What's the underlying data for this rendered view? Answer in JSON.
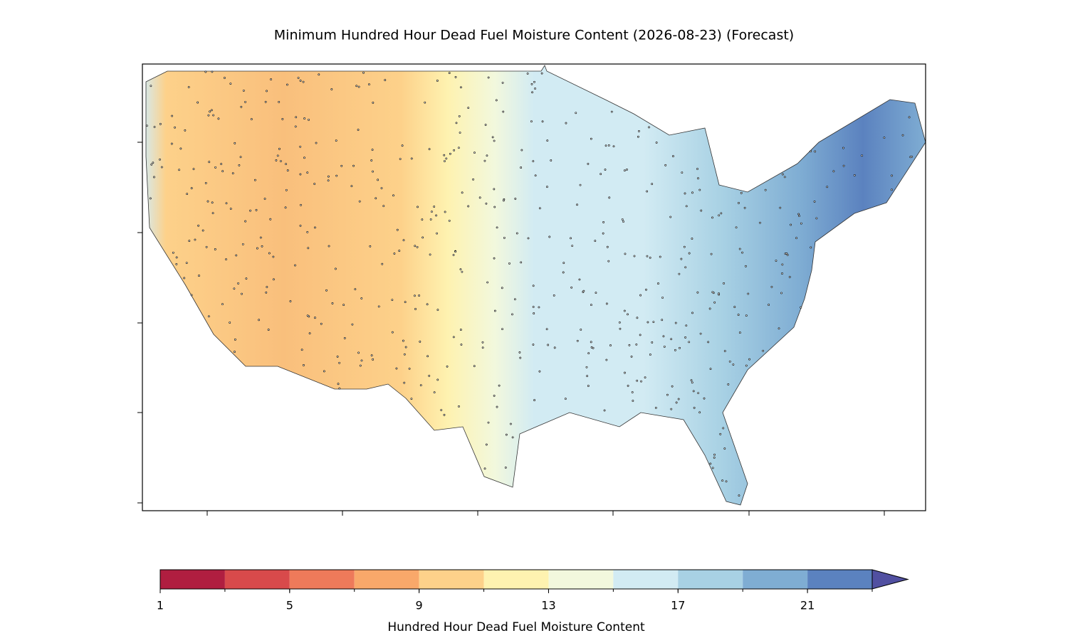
{
  "chart_data": {
    "type": "contour-map",
    "title": "Minimum Hundred Hour Dead Fuel Moisture Content (2026-08-23) (Forecast)",
    "colorbar": {
      "label": "Hundred Hour Dead Fuel Moisture Content",
      "levels": [
        1,
        3,
        5,
        7,
        9,
        11,
        13,
        15,
        17,
        19,
        21,
        23
      ],
      "ticks": [
        1,
        5,
        9,
        13,
        17,
        21
      ],
      "colors": [
        "#b01e40",
        "#d84a4b",
        "#ee7a5a",
        "#f9a86a",
        "#fdd18a",
        "#fef2b0",
        "#f2f8dd",
        "#d2ebf3",
        "#a8d1e4",
        "#7fadd3",
        "#5b82bf"
      ],
      "extend_color": "#5150a1"
    }
  }
}
